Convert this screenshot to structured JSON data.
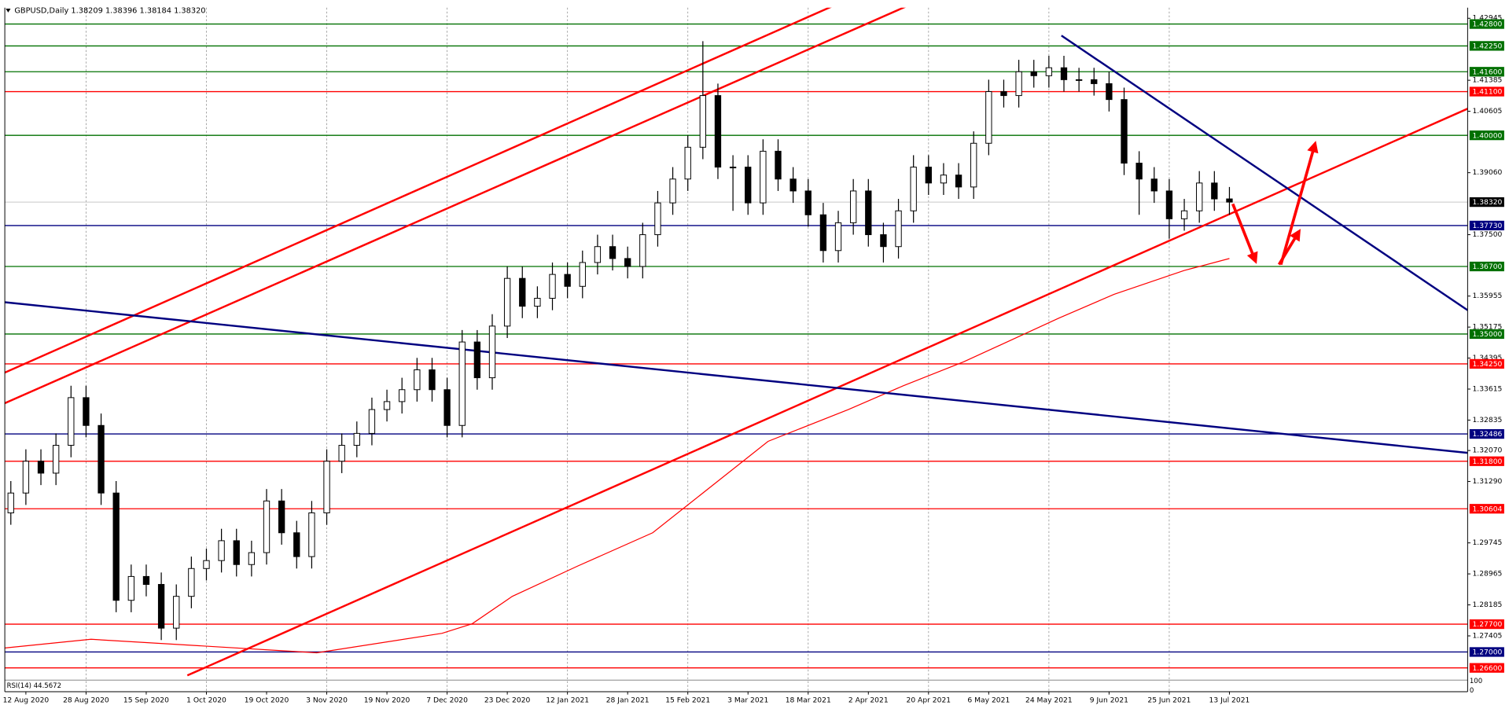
{
  "chart_data": {
    "type": "candlestick",
    "title": "GBPUSD,Daily  1.38209 1.38396 1.38184 1.38320",
    "xlim": [
      -4.2,
      287.5
    ],
    "ylim": [
      1.26316,
      1.43211
    ],
    "x": [
      -3,
      0,
      3,
      6,
      9,
      12,
      15,
      18,
      21,
      24,
      27,
      30,
      33,
      36,
      39,
      42,
      45,
      48,
      51,
      54,
      57,
      60,
      63,
      66,
      69,
      72,
      75,
      78,
      81,
      84,
      87,
      90,
      93,
      96,
      99,
      102,
      105,
      108,
      111,
      114,
      117,
      120,
      123,
      126,
      129,
      132,
      135,
      138,
      141,
      144,
      147,
      150,
      153,
      156,
      159,
      162,
      165,
      168,
      171,
      174,
      177,
      180,
      183,
      186,
      189,
      192,
      195,
      198,
      201,
      204,
      207,
      210,
      213,
      216,
      219,
      222,
      225,
      228,
      231,
      234,
      237,
      240
    ],
    "open": [
      1.305,
      1.31,
      1.318,
      1.315,
      1.322,
      1.334,
      1.327,
      1.31,
      1.283,
      1.289,
      1.287,
      1.276,
      1.284,
      1.291,
      1.293,
      1.298,
      1.292,
      1.295,
      1.308,
      1.3,
      1.294,
      1.305,
      1.318,
      1.322,
      1.325,
      1.331,
      1.333,
      1.336,
      1.341,
      1.336,
      1.327,
      1.348,
      1.339,
      1.352,
      1.364,
      1.357,
      1.359,
      1.365,
      1.362,
      1.368,
      1.372,
      1.369,
      1.367,
      1.375,
      1.383,
      1.389,
      1.397,
      1.41,
      1.392,
      1.392,
      1.383,
      1.396,
      1.389,
      1.386,
      1.38,
      1.371,
      1.378,
      1.386,
      1.375,
      1.372,
      1.381,
      1.392,
      1.388,
      1.39,
      1.387,
      1.398,
      1.411,
      1.41,
      1.416,
      1.415,
      1.417,
      1.414,
      1.414,
      1.413,
      1.409,
      1.393,
      1.389,
      1.386,
      1.379,
      1.381,
      1.388,
      1.384
    ],
    "high": [
      1.313,
      1.321,
      1.321,
      1.325,
      1.337,
      1.337,
      1.33,
      1.313,
      1.292,
      1.292,
      1.29,
      1.287,
      1.294,
      1.296,
      1.301,
      1.301,
      1.298,
      1.311,
      1.311,
      1.303,
      1.308,
      1.321,
      1.325,
      1.328,
      1.334,
      1.336,
      1.339,
      1.344,
      1.344,
      1.339,
      1.351,
      1.351,
      1.355,
      1.367,
      1.367,
      1.362,
      1.368,
      1.368,
      1.371,
      1.375,
      1.375,
      1.372,
      1.378,
      1.386,
      1.392,
      1.4,
      1.4237,
      1.413,
      1.395,
      1.395,
      1.399,
      1.399,
      1.392,
      1.389,
      1.383,
      1.381,
      1.389,
      1.389,
      1.378,
      1.384,
      1.395,
      1.395,
      1.393,
      1.393,
      1.401,
      1.414,
      1.414,
      1.419,
      1.419,
      1.42,
      1.42,
      1.417,
      1.417,
      1.416,
      1.412,
      1.396,
      1.392,
      1.389,
      1.384,
      1.391,
      1.391,
      1.387
    ],
    "low": [
      1.302,
      1.307,
      1.312,
      1.312,
      1.319,
      1.324,
      1.307,
      1.28,
      1.28,
      1.284,
      1.273,
      1.273,
      1.281,
      1.288,
      1.29,
      1.289,
      1.289,
      1.292,
      1.297,
      1.291,
      1.291,
      1.302,
      1.315,
      1.319,
      1.322,
      1.328,
      1.33,
      1.333,
      1.333,
      1.324,
      1.324,
      1.336,
      1.336,
      1.349,
      1.354,
      1.354,
      1.356,
      1.359,
      1.359,
      1.365,
      1.366,
      1.364,
      1.364,
      1.372,
      1.38,
      1.386,
      1.394,
      1.389,
      1.381,
      1.38,
      1.38,
      1.386,
      1.383,
      1.377,
      1.368,
      1.368,
      1.375,
      1.372,
      1.368,
      1.369,
      1.378,
      1.385,
      1.385,
      1.384,
      1.384,
      1.395,
      1.407,
      1.407,
      1.412,
      1.412,
      1.411,
      1.411,
      1.41,
      1.406,
      1.39,
      1.38,
      1.383,
      1.374,
      1.376,
      1.378,
      1.381,
      1.38
    ],
    "close": [
      1.31,
      1.318,
      1.315,
      1.322,
      1.334,
      1.327,
      1.31,
      1.283,
      1.289,
      1.287,
      1.276,
      1.284,
      1.291,
      1.293,
      1.298,
      1.292,
      1.295,
      1.308,
      1.3,
      1.294,
      1.305,
      1.318,
      1.322,
      1.325,
      1.331,
      1.333,
      1.336,
      1.341,
      1.336,
      1.327,
      1.348,
      1.339,
      1.352,
      1.364,
      1.357,
      1.359,
      1.365,
      1.362,
      1.368,
      1.372,
      1.369,
      1.367,
      1.375,
      1.383,
      1.389,
      1.397,
      1.41,
      1.392,
      1.392,
      1.383,
      1.396,
      1.389,
      1.386,
      1.38,
      1.371,
      1.378,
      1.386,
      1.375,
      1.372,
      1.381,
      1.392,
      1.388,
      1.39,
      1.387,
      1.398,
      1.411,
      1.41,
      1.416,
      1.415,
      1.417,
      1.414,
      1.414,
      1.413,
      1.409,
      1.393,
      1.389,
      1.386,
      1.379,
      1.381,
      1.388,
      1.384,
      1.3832
    ],
    "yticks": [
      1.42945,
      1.41385,
      1.40605,
      {
        "value": 1.3906,
        "label": "1.39060"
      },
      {
        "value": 1.375,
        "label": "1.37500"
      },
      1.35955,
      1.35175,
      1.34395,
      1.33615,
      1.32835,
      {
        "value": 1.3207,
        "label": "1.32070"
      },
      {
        "value": 1.3129,
        "label": "1.31290"
      },
      1.29745,
      1.28965,
      1.28185,
      1.27405
    ],
    "xticks": [
      {
        "value": 0,
        "label": "12 Aug 2020"
      },
      {
        "value": 12,
        "label": "28 Aug 2020"
      },
      {
        "value": 24,
        "label": "15 Sep 2020"
      },
      {
        "value": 36,
        "label": "1 Oct 2020"
      },
      {
        "value": 48,
        "label": "19 Oct 2020"
      },
      {
        "value": 60,
        "label": "3 Nov 2020"
      },
      {
        "value": 72,
        "label": "19 Nov 2020"
      },
      {
        "value": 84,
        "label": "7 Dec 2020"
      },
      {
        "value": 96,
        "label": "23 Dec 2020"
      },
      {
        "value": 108,
        "label": "12 Jan 2021"
      },
      {
        "value": 120,
        "label": "28 Jan 2021"
      },
      {
        "value": 132,
        "label": "15 Feb 2021"
      },
      {
        "value": 144,
        "label": "3 Mar 2021"
      },
      {
        "value": 156,
        "label": "18 Mar 2021"
      },
      {
        "value": 168,
        "label": "2 Apr 2021"
      },
      {
        "value": 180,
        "label": "20 Apr 2021"
      },
      {
        "value": 192,
        "label": "6 May 2021"
      },
      {
        "value": 204,
        "label": "24 May 2021"
      },
      {
        "value": 216,
        "label": "9 Jun 2021"
      },
      {
        "value": 228,
        "label": "25 Jun 2021"
      },
      {
        "value": 240,
        "label": "13 Jul 2021"
      }
    ],
    "ma": {
      "color": "#ff0000",
      "x": [
        -4.2,
        13,
        58,
        83,
        89,
        97,
        110,
        125,
        137,
        148,
        164,
        175,
        187,
        206,
        217,
        231,
        240
      ],
      "values": [
        1.271,
        1.2732,
        1.2698,
        1.2747,
        1.2771,
        1.284,
        1.2916,
        1.3,
        1.312,
        1.323,
        1.331,
        1.337,
        1.343,
        1.354,
        1.36,
        1.366,
        1.369
      ]
    },
    "trendlines": [
      {
        "color": "#ff0000",
        "x": [
          32.2,
          287.5
        ],
        "y": [
          1.2641,
          1.4067
        ]
      },
      {
        "color": "#ff0000",
        "x": [
          -4.2,
          161.4
        ],
        "y": [
          1.3403,
          1.4328
        ]
      },
      {
        "color": "#ff0000",
        "x": [
          -4.2,
          176.2
        ],
        "y": [
          1.3326,
          1.4328
        ]
      },
      {
        "color": "#000080",
        "x": [
          206.5,
          287.5
        ],
        "y": [
          1.4251,
          1.356
        ]
      },
      {
        "color": "#000080",
        "x": [
          -4.2,
          287.5
        ],
        "y": [
          1.358,
          1.3201
        ]
      }
    ],
    "levels": [
      {
        "value": 1.428,
        "label": "1.42800",
        "color": "#007000"
      },
      {
        "value": 1.4225,
        "label": "1.42250",
        "color": "#007000"
      },
      {
        "value": 1.416,
        "label": "1.41600",
        "color": "#007000"
      },
      {
        "value": 1.411,
        "label": "1.41100",
        "color": "#ff0000"
      },
      {
        "value": 1.4,
        "label": "1.40000",
        "color": "#007000"
      },
      {
        "value": 1.3773,
        "label": "1.37730",
        "color": "#000080"
      },
      {
        "value": 1.367,
        "label": "1.36700",
        "color": "#007000"
      },
      {
        "value": 1.35,
        "label": "1.35000",
        "color": "#007000"
      },
      {
        "value": 1.3425,
        "label": "1.34250",
        "color": "#ff0000"
      },
      {
        "value": 1.32486,
        "label": "1.32486",
        "color": "#000080"
      },
      {
        "value": 1.318,
        "label": "1.31800",
        "color": "#ff0000"
      },
      {
        "value": 1.30604,
        "label": "1.30604",
        "color": "#ff0000"
      },
      {
        "value": 1.277,
        "label": "1.27700",
        "color": "#ff0000"
      },
      {
        "value": 1.27,
        "label": "1.27000",
        "color": "#000080"
      },
      {
        "value": 1.266,
        "label": "1.26600",
        "color": "#ff0000"
      }
    ],
    "current_price": {
      "value": 1.3832,
      "label": "1.38320",
      "color": "#000000"
    },
    "rsi": {
      "label": "RSI(14) 44.5672",
      "ylim": [
        0,
        100
      ],
      "yticks": [
        100,
        0
      ]
    }
  }
}
